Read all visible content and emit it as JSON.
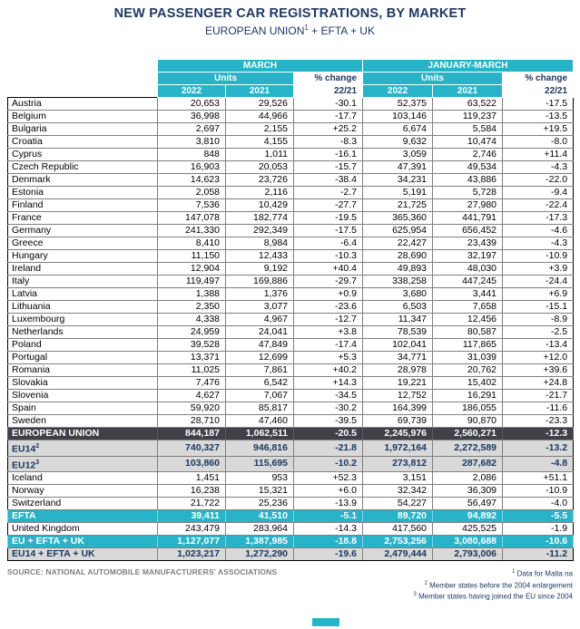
{
  "title": "NEW PASSENGER CAR REGISTRATIONS, BY MARKET",
  "subtitle": {
    "prefix": "EUROPEAN UNION",
    "sup": "1",
    "suffix": " + EFTA + UK"
  },
  "colors": {
    "navy": "#1f3864",
    "cyan": "#29b3c8",
    "dark": "#404049",
    "gray": "#d9d9d9"
  },
  "header": {
    "march": "MARCH",
    "jan_march": "JANUARY-MARCH",
    "units": "Units",
    "pct_change": "% change",
    "y2022": "2022",
    "y2021": "2021",
    "ratio": "22/21"
  },
  "rows": [
    {
      "name": "Austria",
      "style": "plain",
      "m2022": "20,653",
      "m2021": "29,526",
      "mchg": "-30.1",
      "q2022": "52,375",
      "q2021": "63,522",
      "qchg": "-17.5"
    },
    {
      "name": "Belgium",
      "style": "plain",
      "m2022": "36,998",
      "m2021": "44,966",
      "mchg": "-17.7",
      "q2022": "103,146",
      "q2021": "119,237",
      "qchg": "-13.5"
    },
    {
      "name": "Bulgaria",
      "style": "plain",
      "m2022": "2,697",
      "m2021": "2,155",
      "mchg": "+25.2",
      "q2022": "6,674",
      "q2021": "5,584",
      "qchg": "+19.5"
    },
    {
      "name": "Croatia",
      "style": "plain",
      "m2022": "3,810",
      "m2021": "4,155",
      "mchg": "-8.3",
      "q2022": "9,632",
      "q2021": "10,474",
      "qchg": "-8.0"
    },
    {
      "name": "Cyprus",
      "style": "plain",
      "m2022": "848",
      "m2021": "1,011",
      "mchg": "-16.1",
      "q2022": "3,059",
      "q2021": "2,746",
      "qchg": "+11.4"
    },
    {
      "name": "Czech Republic",
      "style": "plain",
      "m2022": "16,903",
      "m2021": "20,053",
      "mchg": "-15.7",
      "q2022": "47,391",
      "q2021": "49,534",
      "qchg": "-4.3"
    },
    {
      "name": "Denmark",
      "style": "plain",
      "m2022": "14,623",
      "m2021": "23,726",
      "mchg": "-38.4",
      "q2022": "34,231",
      "q2021": "43,886",
      "qchg": "-22.0"
    },
    {
      "name": "Estonia",
      "style": "plain",
      "m2022": "2,058",
      "m2021": "2,116",
      "mchg": "-2.7",
      "q2022": "5,191",
      "q2021": "5,728",
      "qchg": "-9.4"
    },
    {
      "name": "Finland",
      "style": "plain",
      "m2022": "7,536",
      "m2021": "10,429",
      "mchg": "-27.7",
      "q2022": "21,725",
      "q2021": "27,980",
      "qchg": "-22.4"
    },
    {
      "name": "France",
      "style": "plain",
      "m2022": "147,078",
      "m2021": "182,774",
      "mchg": "-19.5",
      "q2022": "365,360",
      "q2021": "441,791",
      "qchg": "-17.3"
    },
    {
      "name": "Germany",
      "style": "plain",
      "m2022": "241,330",
      "m2021": "292,349",
      "mchg": "-17.5",
      "q2022": "625,954",
      "q2021": "656,452",
      "qchg": "-4.6"
    },
    {
      "name": "Greece",
      "style": "plain",
      "m2022": "8,410",
      "m2021": "8,984",
      "mchg": "-6.4",
      "q2022": "22,427",
      "q2021": "23,439",
      "qchg": "-4.3"
    },
    {
      "name": "Hungary",
      "style": "plain",
      "m2022": "11,150",
      "m2021": "12,433",
      "mchg": "-10.3",
      "q2022": "28,690",
      "q2021": "32,197",
      "qchg": "-10.9"
    },
    {
      "name": "Ireland",
      "style": "plain",
      "m2022": "12,904",
      "m2021": "9,192",
      "mchg": "+40.4",
      "q2022": "49,893",
      "q2021": "48,030",
      "qchg": "+3.9"
    },
    {
      "name": "Italy",
      "style": "plain",
      "m2022": "119,497",
      "m2021": "169,886",
      "mchg": "-29.7",
      "q2022": "338,258",
      "q2021": "447,245",
      "qchg": "-24.4"
    },
    {
      "name": "Latvia",
      "style": "plain",
      "m2022": "1,388",
      "m2021": "1,376",
      "mchg": "+0.9",
      "q2022": "3,680",
      "q2021": "3,441",
      "qchg": "+6.9"
    },
    {
      "name": "Lithuania",
      "style": "plain",
      "m2022": "2,350",
      "m2021": "3,077",
      "mchg": "-23.6",
      "q2022": "6,503",
      "q2021": "7,658",
      "qchg": "-15.1"
    },
    {
      "name": "Luxembourg",
      "style": "plain",
      "m2022": "4,338",
      "m2021": "4,967",
      "mchg": "-12.7",
      "q2022": "11,347",
      "q2021": "12,456",
      "qchg": "-8.9"
    },
    {
      "name": "Netherlands",
      "style": "plain",
      "m2022": "24,959",
      "m2021": "24,041",
      "mchg": "+3.8",
      "q2022": "78,539",
      "q2021": "80,587",
      "qchg": "-2.5"
    },
    {
      "name": "Poland",
      "style": "plain",
      "m2022": "39,528",
      "m2021": "47,849",
      "mchg": "-17.4",
      "q2022": "102,041",
      "q2021": "117,865",
      "qchg": "-13.4"
    },
    {
      "name": "Portugal",
      "style": "plain",
      "m2022": "13,371",
      "m2021": "12,699",
      "mchg": "+5.3",
      "q2022": "34,771",
      "q2021": "31,039",
      "qchg": "+12.0"
    },
    {
      "name": "Romania",
      "style": "plain",
      "m2022": "11,025",
      "m2021": "7,861",
      "mchg": "+40.2",
      "q2022": "28,978",
      "q2021": "20,762",
      "qchg": "+39.6"
    },
    {
      "name": "Slovakia",
      "style": "plain",
      "m2022": "7,476",
      "m2021": "6,542",
      "mchg": "+14.3",
      "q2022": "19,221",
      "q2021": "15,402",
      "qchg": "+24.8"
    },
    {
      "name": "Slovenia",
      "style": "plain",
      "m2022": "4,627",
      "m2021": "7,067",
      "mchg": "-34.5",
      "q2022": "12,752",
      "q2021": "16,291",
      "qchg": "-21.7"
    },
    {
      "name": "Spain",
      "style": "plain",
      "m2022": "59,920",
      "m2021": "85,817",
      "mchg": "-30.2",
      "q2022": "164,399",
      "q2021": "186,055",
      "qchg": "-11.6"
    },
    {
      "name": "Sweden",
      "style": "plain",
      "m2022": "28,710",
      "m2021": "47,460",
      "mchg": "-39.5",
      "q2022": "69,739",
      "q2021": "90,870",
      "qchg": "-23.3"
    },
    {
      "name": "EUROPEAN UNION",
      "style": "dark",
      "m2022": "844,187",
      "m2021": "1,062,511",
      "mchg": "-20.5",
      "q2022": "2,245,976",
      "q2021": "2,560,271",
      "qchg": "-12.3"
    },
    {
      "name": "EU14",
      "sup": "2",
      "style": "gray",
      "m2022": "740,327",
      "m2021": "946,816",
      "mchg": "-21.8",
      "q2022": "1,972,164",
      "q2021": "2,272,589",
      "qchg": "-13.2"
    },
    {
      "name": "EU12",
      "sup": "3",
      "style": "gray",
      "m2022": "103,860",
      "m2021": "115,695",
      "mchg": "-10.2",
      "q2022": "273,812",
      "q2021": "287,682",
      "qchg": "-4.8"
    },
    {
      "name": "Iceland",
      "style": "plain",
      "m2022": "1,451",
      "m2021": "953",
      "mchg": "+52.3",
      "q2022": "3,151",
      "q2021": "2,086",
      "qchg": "+51.1"
    },
    {
      "name": "Norway",
      "style": "plain",
      "m2022": "16,238",
      "m2021": "15,321",
      "mchg": "+6.0",
      "q2022": "32,342",
      "q2021": "36,309",
      "qchg": "-10.9"
    },
    {
      "name": "Switzerland",
      "style": "plain",
      "m2022": "21,722",
      "m2021": "25,236",
      "mchg": "-13.9",
      "q2022": "54,227",
      "q2021": "56,497",
      "qchg": "-4.0"
    },
    {
      "name": "EFTA",
      "style": "cyan",
      "m2022": "39,411",
      "m2021": "41,510",
      "mchg": "-5.1",
      "q2022": "89,720",
      "q2021": "94,892",
      "qchg": "-5.5"
    },
    {
      "name": "United Kingdom",
      "style": "plain",
      "m2022": "243,479",
      "m2021": "283,964",
      "mchg": "-14.3",
      "q2022": "417,560",
      "q2021": "425,525",
      "qchg": "-1.9"
    },
    {
      "name": "EU + EFTA + UK",
      "style": "cyan",
      "m2022": "1,127,077",
      "m2021": "1,387,985",
      "mchg": "-18.8",
      "q2022": "2,753,256",
      "q2021": "3,080,688",
      "qchg": "-10.6"
    },
    {
      "name": "EU14 + EFTA + UK",
      "style": "gray",
      "m2022": "1,023,217",
      "m2021": "1,272,290",
      "mchg": "-19.6",
      "q2022": "2,479,444",
      "q2021": "2,793,006",
      "qchg": "-11.2"
    }
  ],
  "source": "SOURCE: NATIONAL AUTOMOBILE MANUFACTURERS' ASSOCIATIONS",
  "footnotes": [
    {
      "sup": "1",
      "text": "Data for Malta na"
    },
    {
      "sup": "2",
      "text": "Member states before the 2004 enlargement"
    },
    {
      "sup": "3",
      "text": "Member states having joined the EU since 2004"
    }
  ]
}
